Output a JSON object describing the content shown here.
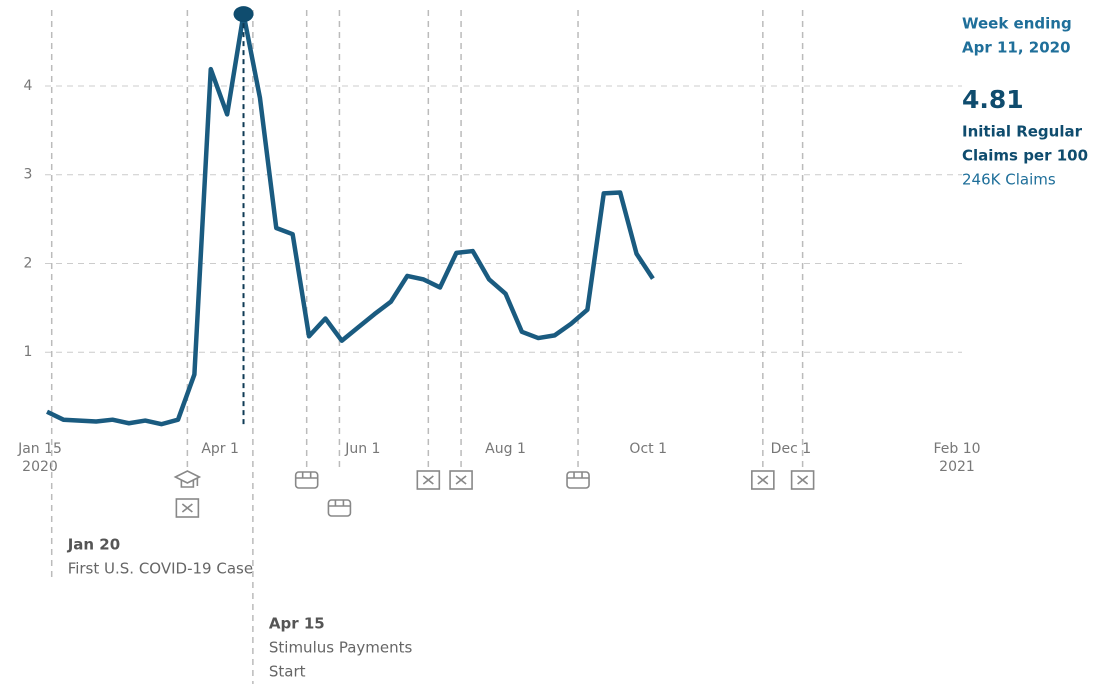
{
  "chart_data": {
    "type": "line",
    "series": [
      {
        "name": "Initial Regular Claims per 100",
        "color": "#1a5b80",
        "x": [
          "2020-01-18",
          "2020-01-25",
          "2020-02-01",
          "2020-02-08",
          "2020-02-15",
          "2020-02-22",
          "2020-02-29",
          "2020-03-07",
          "2020-03-14",
          "2020-03-21",
          "2020-03-28",
          "2020-04-04",
          "2020-04-11",
          "2020-04-18",
          "2020-04-25",
          "2020-05-02",
          "2020-05-09",
          "2020-05-16",
          "2020-05-23",
          "2020-05-30",
          "2020-06-06",
          "2020-06-13",
          "2020-06-20",
          "2020-06-27",
          "2020-07-04",
          "2020-07-11",
          "2020-07-18",
          "2020-07-25",
          "2020-08-01",
          "2020-08-08",
          "2020-08-15",
          "2020-08-22",
          "2020-08-29",
          "2020-09-05",
          "2020-09-12",
          "2020-09-19",
          "2020-09-26",
          "2020-10-03"
        ],
        "values": [
          0.33,
          0.24,
          0.23,
          0.22,
          0.24,
          0.2,
          0.23,
          0.19,
          0.24,
          0.75,
          4.19,
          3.68,
          4.81,
          3.87,
          2.4,
          2.33,
          1.18,
          1.38,
          1.13,
          1.28,
          1.43,
          1.57,
          1.86,
          1.82,
          1.73,
          2.12,
          2.14,
          1.82,
          1.66,
          1.23,
          1.16,
          1.19,
          1.32,
          1.48,
          2.79,
          2.8,
          2.11,
          1.83
        ]
      }
    ],
    "xlim": [
      "2020-01-15",
      "2021-02-10"
    ],
    "xticks": [
      {
        "value": "2020-01-15",
        "label": "Jan 15",
        "year": "2020"
      },
      {
        "value": "2020-04-01",
        "label": "Apr 1"
      },
      {
        "value": "2020-06-01",
        "label": "Jun 1"
      },
      {
        "value": "2020-08-01",
        "label": "Aug 1"
      },
      {
        "value": "2020-10-01",
        "label": "Oct 1"
      },
      {
        "value": "2020-12-01",
        "label": "Dec 1"
      },
      {
        "value": "2021-02-10",
        "label": "Feb 10",
        "year": "2021"
      }
    ],
    "ylim": [
      0,
      4.98
    ],
    "yticks": [
      1,
      2,
      3,
      4
    ],
    "grid": true,
    "highlight": {
      "x": "2020-04-11",
      "heading": "Week ending",
      "date_label": "Apr 11, 2020",
      "measure": [
        "Initial Regular",
        "Claims per 100"
      ],
      "count_label": "246K Claims"
    },
    "events": [
      {
        "x": "2020-03-18",
        "icons": [
          "school",
          "closure"
        ]
      },
      {
        "x": "2020-05-08",
        "icons": [
          "store"
        ]
      },
      {
        "x": "2020-05-22",
        "icons": [
          null,
          "store"
        ]
      },
      {
        "x": "2020-06-29",
        "icons": [
          "closure"
        ]
      },
      {
        "x": "2020-07-13",
        "icons": [
          "closure"
        ]
      },
      {
        "x": "2020-09-01",
        "icons": [
          "store"
        ]
      },
      {
        "x": "2020-11-19",
        "icons": [
          "closure"
        ]
      },
      {
        "x": "2020-12-06",
        "icons": [
          "closure"
        ]
      }
    ],
    "annotations": [
      {
        "x": "2020-01-20",
        "date": "Jan 20",
        "lines": [
          "First U.S. COVID-19 Case"
        ]
      },
      {
        "x": "2020-04-15",
        "date": "Apr 15",
        "lines": [
          "Stimulus Payments",
          "Start"
        ]
      }
    ]
  }
}
